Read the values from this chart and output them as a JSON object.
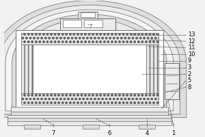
{
  "bg_color": "#f2f2f2",
  "line_color": "#666666",
  "fill_gray": "#c8c8c8",
  "fill_light": "#dedede",
  "fill_lighter": "#ebebeb",
  "figsize": [
    3.0,
    2.0
  ],
  "dpi": 100,
  "labels_order": [
    "13",
    "12",
    "11",
    "10",
    "9",
    "3",
    "2",
    "5",
    "8"
  ],
  "bottom_labels": {
    "1": 260,
    "4": 218,
    "6": 160,
    "7": 75
  }
}
